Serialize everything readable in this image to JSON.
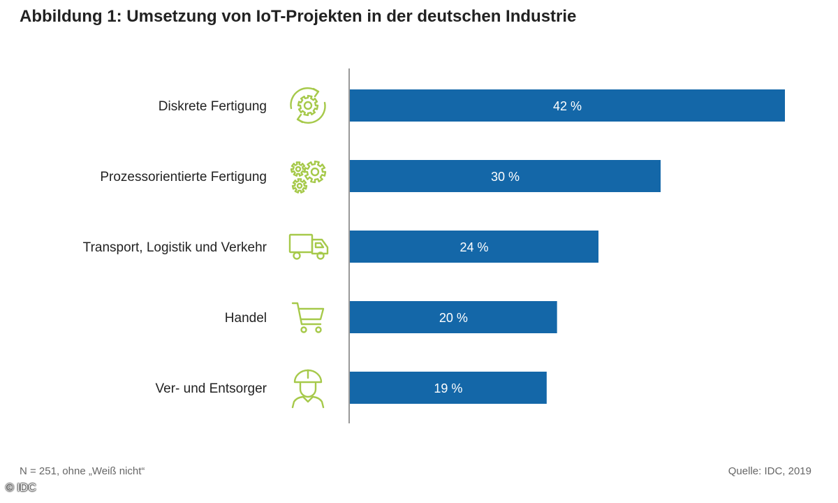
{
  "header": {
    "title": "Abbildung 1: Umsetzung von IoT-Projekten in der deutschen Industrie"
  },
  "chart_data": {
    "type": "bar",
    "orientation": "horizontal",
    "title": "Abbildung 1: Umsetzung von IoT-Projekten in der deutschen Industrie",
    "categories": [
      "Diskrete Fertigung",
      "Prozessorientierte Fertigung",
      "Transport, Logistik und Verkehr",
      "Handel",
      "Ver- und Entsorger"
    ],
    "values": [
      42,
      30,
      24,
      20,
      19
    ],
    "value_labels": [
      "42 %",
      "30 %",
      "24 %",
      "20 %",
      "19 %"
    ],
    "icons": [
      "gear-cycle-icon",
      "gears-icon",
      "truck-icon",
      "shopping-cart-icon",
      "worker-helmet-icon"
    ],
    "xlim": [
      0,
      42
    ],
    "unit": "%",
    "grid": false,
    "legend": "none"
  },
  "colors": {
    "bar": "#1467a8",
    "icon": "#a6c94a",
    "axis": "#555555"
  },
  "footer": {
    "note": "N = 251, ohne „Weiß nicht“",
    "source": "Quelle: IDC, 2019",
    "copyright": "© IDC"
  }
}
